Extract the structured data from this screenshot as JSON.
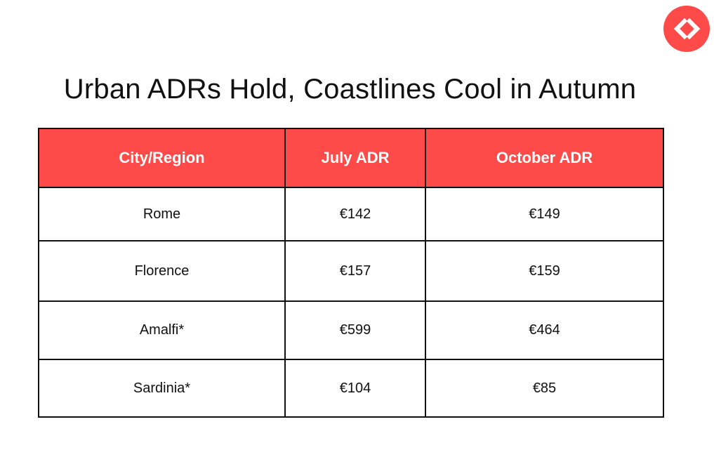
{
  "logo": {
    "icon": "code-brackets-icon",
    "color": "#ff4a4a"
  },
  "title": "Urban ADRs Hold, Coastlines Cool in Autumn",
  "table": {
    "header_color": "#ff4a4a",
    "headers": [
      "City/Region",
      "July ADR",
      "October ADR"
    ],
    "rows": [
      [
        "Rome",
        "€142",
        "€149"
      ],
      [
        "Florence",
        "€157",
        "€159"
      ],
      [
        "Amalfi*",
        "€599",
        "€464"
      ],
      [
        "Sardinia*",
        "€104",
        "€85"
      ]
    ]
  }
}
